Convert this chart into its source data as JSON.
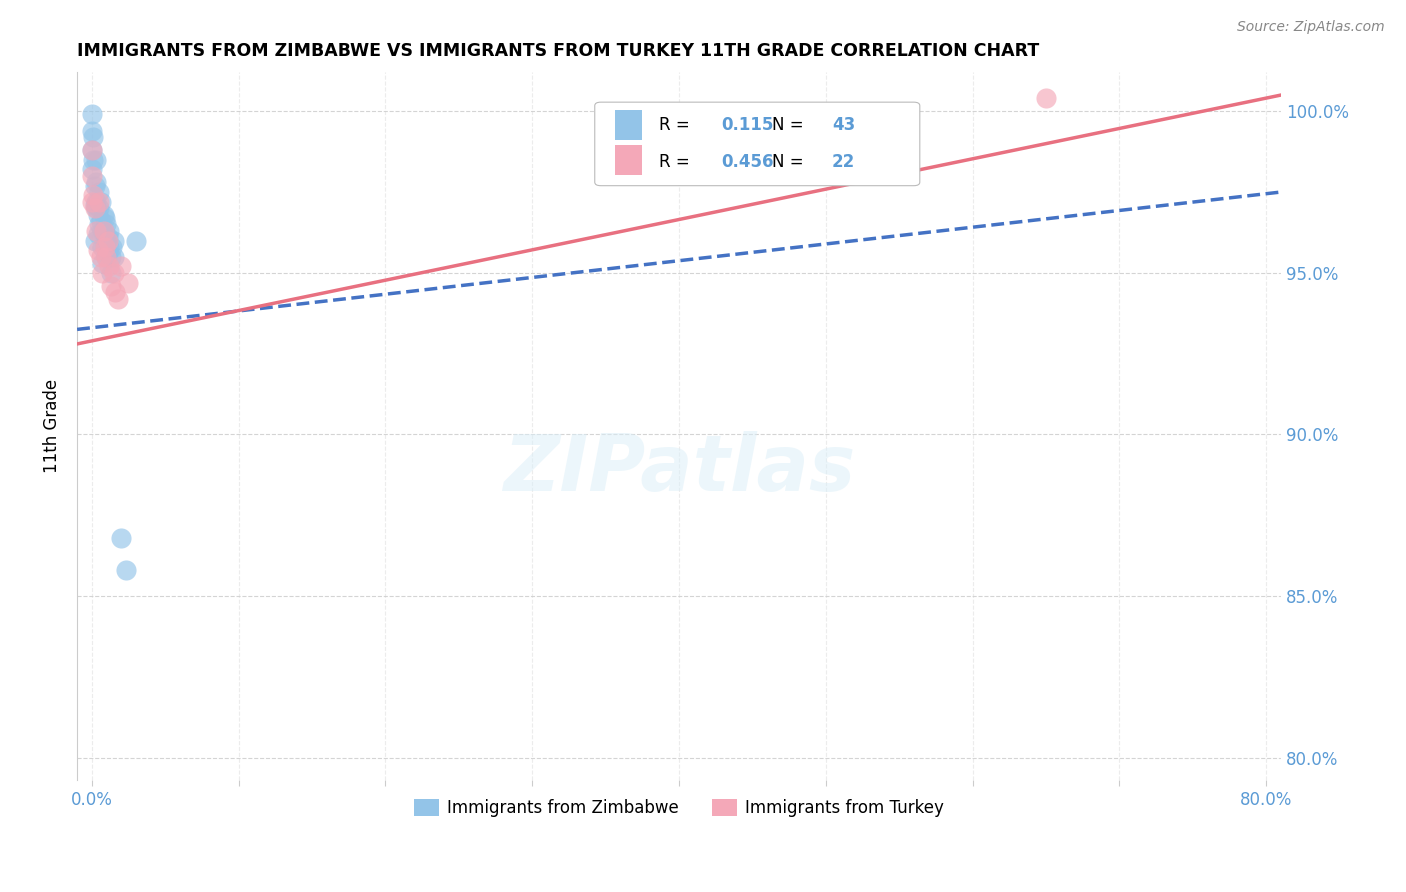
{
  "title": "IMMIGRANTS FROM ZIMBABWE VS IMMIGRANTS FROM TURKEY 11TH GRADE CORRELATION CHART",
  "source": "Source: ZipAtlas.com",
  "ylabel": "11th Grade",
  "R1": "0.115",
  "N1": "43",
  "R2": "0.456",
  "N2": "22",
  "legend1_label": "Immigrants from Zimbabwe",
  "legend2_label": "Immigrants from Turkey",
  "color_blue": "#93C4E8",
  "color_pink": "#F4A8B8",
  "color_blue_line": "#4472C4",
  "color_pink_line": "#E87080",
  "color_blue_text": "#5B9BD5",
  "background_color": "#FFFFFF",
  "grid_color": "#D0D0D0",
  "xlim": [
    -0.01,
    0.81
  ],
  "ylim": [
    0.793,
    1.012
  ],
  "y_tick_vals": [
    0.8,
    0.85,
    0.9,
    0.95,
    1.0
  ],
  "x_tick_vals": [
    0.0,
    0.1,
    0.2,
    0.3,
    0.4,
    0.5,
    0.6,
    0.7,
    0.8
  ],
  "blue_line_x0": -0.01,
  "blue_line_y0": 0.9325,
  "blue_line_x1": 0.81,
  "blue_line_y1": 0.975,
  "pink_line_x0": -0.01,
  "pink_line_y0": 0.928,
  "pink_line_x1": 0.81,
  "pink_line_y1": 1.005,
  "blue_x": [
    0.0,
    0.0,
    0.0,
    0.0,
    0.001,
    0.001,
    0.002,
    0.002,
    0.003,
    0.003,
    0.003,
    0.004,
    0.004,
    0.005,
    0.005,
    0.005,
    0.006,
    0.006,
    0.007,
    0.007,
    0.007,
    0.008,
    0.008,
    0.009,
    0.009,
    0.009,
    0.01,
    0.01,
    0.01,
    0.011,
    0.011,
    0.012,
    0.012,
    0.013,
    0.013,
    0.014,
    0.015,
    0.015,
    0.02,
    0.023,
    0.03,
    0.002,
    0.003
  ],
  "blue_y": [
    0.999,
    0.994,
    0.988,
    0.982,
    0.992,
    0.985,
    0.977,
    0.971,
    0.985,
    0.978,
    0.972,
    0.968,
    0.962,
    0.975,
    0.97,
    0.965,
    0.972,
    0.966,
    0.963,
    0.958,
    0.953,
    0.968,
    0.963,
    0.967,
    0.962,
    0.958,
    0.965,
    0.96,
    0.955,
    0.961,
    0.956,
    0.963,
    0.958,
    0.955,
    0.95,
    0.958,
    0.96,
    0.955,
    0.868,
    0.858,
    0.96,
    0.96,
    0.97
  ],
  "pink_x": [
    0.0,
    0.0,
    0.0,
    0.001,
    0.002,
    0.003,
    0.004,
    0.005,
    0.006,
    0.007,
    0.008,
    0.009,
    0.01,
    0.011,
    0.012,
    0.013,
    0.015,
    0.016,
    0.018,
    0.02,
    0.025,
    0.65
  ],
  "pink_y": [
    0.988,
    0.98,
    0.972,
    0.974,
    0.97,
    0.963,
    0.957,
    0.972,
    0.955,
    0.95,
    0.963,
    0.958,
    0.955,
    0.96,
    0.952,
    0.946,
    0.95,
    0.944,
    0.942,
    0.952,
    0.947,
    1.004
  ]
}
